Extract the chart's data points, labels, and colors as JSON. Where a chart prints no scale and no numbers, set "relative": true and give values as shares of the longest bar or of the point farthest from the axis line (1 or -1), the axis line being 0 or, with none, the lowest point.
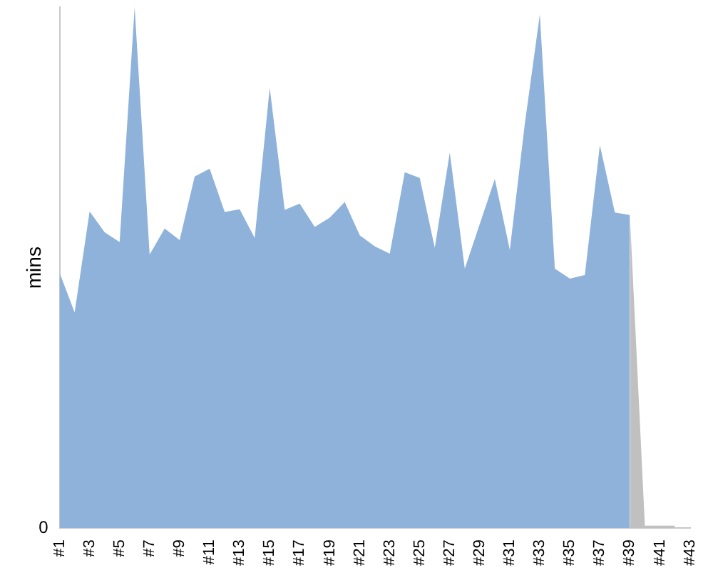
{
  "chart_data": {
    "type": "area",
    "ylabel": "mins",
    "relative": true,
    "annotations": [
      "0"
    ],
    "grid": false,
    "legend": false,
    "marker": "none",
    "categories": [
      "#1",
      null,
      "#3",
      null,
      "#5",
      null,
      "#7",
      null,
      "#9",
      null,
      "#11",
      null,
      "#13",
      null,
      "#15",
      null,
      "#17",
      null,
      "#19",
      null,
      "#21",
      null,
      "#23",
      null,
      "#25",
      null,
      "#27",
      null,
      "#29",
      null,
      "#31",
      null,
      "#33",
      null,
      "#35",
      null,
      "#37",
      null,
      "#39",
      null,
      "#41",
      null,
      "#43"
    ],
    "series": [
      {
        "color": "#8fb2db",
        "values": [
          0.49,
          0.414,
          0.608,
          0.568,
          0.549,
          1,
          0.525,
          0.575,
          0.553,
          0.675,
          0.69,
          0.607,
          0.612,
          0.557,
          0.845,
          0.611,
          0.623,
          0.578,
          0.596,
          0.626,
          0.562,
          0.541,
          0.527,
          0.683,
          0.672,
          0.538,
          0.721,
          0.498,
          0.584,
          0.67,
          0.534,
          0.776,
          0.986,
          0.498,
          0.479,
          0.486,
          0.735,
          0.606,
          0.601,
          null,
          null,
          null,
          null
        ]
      },
      {
        "color": "#c0c0c0",
        "values": [
          null,
          null,
          null,
          null,
          null,
          null,
          null,
          null,
          null,
          null,
          null,
          null,
          null,
          null,
          null,
          null,
          null,
          null,
          null,
          null,
          null,
          null,
          null,
          null,
          null,
          null,
          null,
          null,
          null,
          null,
          null,
          null,
          null,
          null,
          null,
          null,
          null,
          null,
          0.601,
          0.005,
          0.005,
          0.005,
          null
        ]
      }
    ]
  }
}
